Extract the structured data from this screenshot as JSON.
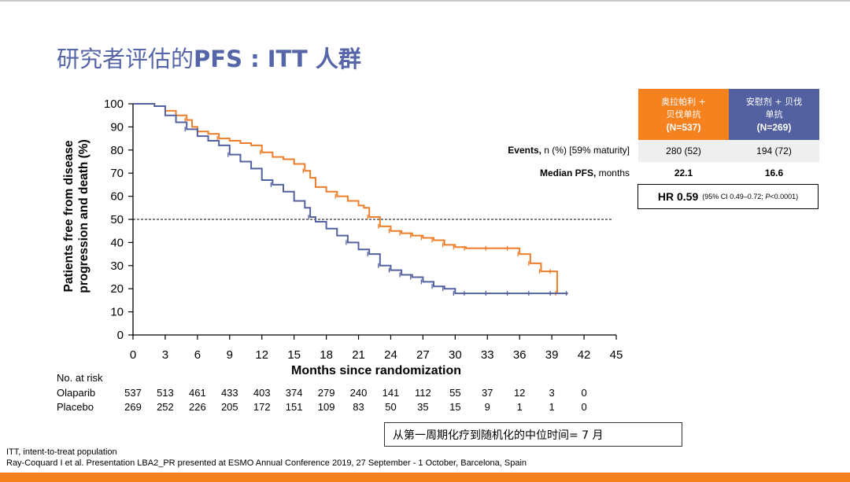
{
  "title": {
    "cn": "研究者评估的",
    "en": "PFS : ITT 人群"
  },
  "colors": {
    "olaparib": "#ee7d2a",
    "placebo": "#5361a0",
    "title": "#5565a8",
    "bottom_bar": "#f5821f"
  },
  "chart_data": {
    "type": "line",
    "title": "",
    "xlabel": "Months since randomization",
    "ylabel": "Patients free from disease progression and death (%)",
    "xlim": [
      0,
      45
    ],
    "ylim": [
      0,
      100
    ],
    "xticks": [
      0,
      3,
      6,
      9,
      12,
      15,
      18,
      21,
      24,
      27,
      30,
      33,
      36,
      39,
      42,
      45
    ],
    "yticks": [
      0,
      10,
      20,
      30,
      40,
      50,
      60,
      70,
      80,
      90,
      100
    ],
    "reference_line": {
      "y": 50,
      "style": "dashed"
    },
    "series": [
      {
        "name": "Olaparib",
        "color": "#ee7d2a",
        "x": [
          0,
          2,
          3,
          4,
          5,
          5.5,
          6,
          7,
          8,
          9,
          10,
          11,
          12,
          13,
          14,
          15,
          16,
          16.5,
          17,
          18,
          19,
          20,
          21,
          21.5,
          22,
          23,
          24,
          25,
          26,
          27,
          28,
          29,
          30,
          31,
          33,
          35,
          36,
          37,
          38,
          39,
          39.5
        ],
        "y": [
          100,
          99,
          97,
          95,
          93,
          90,
          88,
          87,
          85,
          84,
          83,
          82,
          79,
          77,
          76,
          74,
          71,
          68,
          64,
          62,
          60,
          58,
          56,
          55,
          51,
          47,
          45,
          44,
          43,
          42,
          41,
          39,
          38,
          37.5,
          37.5,
          37.5,
          35,
          31,
          27.5,
          27.5,
          18
        ]
      },
      {
        "name": "Placebo",
        "color": "#5361a0",
        "x": [
          0,
          2,
          3,
          4,
          5,
          6,
          7,
          8,
          9,
          10,
          11,
          12,
          13,
          14,
          15,
          16,
          16.5,
          17,
          18,
          19,
          20,
          21,
          22,
          23,
          24,
          25,
          26,
          27,
          28,
          29,
          30,
          31,
          33,
          35,
          37,
          39,
          40.5
        ],
        "y": [
          100,
          99,
          95,
          92,
          89,
          86,
          84,
          82,
          78,
          75,
          72,
          67,
          65,
          62,
          58,
          55,
          51,
          49,
          46,
          43,
          40,
          37,
          35,
          30,
          28,
          26,
          25,
          23,
          21,
          20,
          18,
          18,
          18,
          18,
          18,
          18,
          18
        ]
      }
    ]
  },
  "risk_table": {
    "header": "No. at risk",
    "rows": [
      {
        "label": "Olaparib",
        "values": [
          "537",
          "513",
          "461",
          "433",
          "403",
          "374",
          "279",
          "240",
          "141",
          "112",
          "55",
          "37",
          "12",
          "3",
          "0"
        ]
      },
      {
        "label": "Placebo",
        "values": [
          "269",
          "252",
          "226",
          "205",
          "172",
          "151",
          "109",
          "83",
          "50",
          "35",
          "15",
          "9",
          "1",
          "1",
          "0"
        ]
      }
    ]
  },
  "summary_table": {
    "col1": {
      "line1": "奥拉帕利 +",
      "line2": "贝伐单抗",
      "n": "(N=537)",
      "color": "#f5821f"
    },
    "col2": {
      "line1": "安慰剂 + 贝伐",
      "line2": "单抗",
      "n": "(N=269)",
      "color": "#5361a0"
    },
    "events": {
      "label_bold": "Events,",
      "label_rest": "n (%) [59% maturity]",
      "v1": "280 (52)",
      "v2": "194 (72)"
    },
    "median": {
      "label_bold": "Median PFS,",
      "label_rest": "months",
      "v1": "22.1",
      "v2": "16.6"
    },
    "hr": {
      "main": "HR 0.59",
      "ci": "(95% CI 0.49–0.72;",
      "p_label": "P",
      "p_value": "<0.0001)"
    }
  },
  "note": "从第一周期化疗到随机化的中位时间= 7 月",
  "footnotes": [
    "ITT, intent-to-treat population",
    "Ray-Coquard I et al. Presentation LBA2_PR presented at ESMO Annual Conference 2019, 27 September - 1 October, Barcelona, Spain"
  ]
}
